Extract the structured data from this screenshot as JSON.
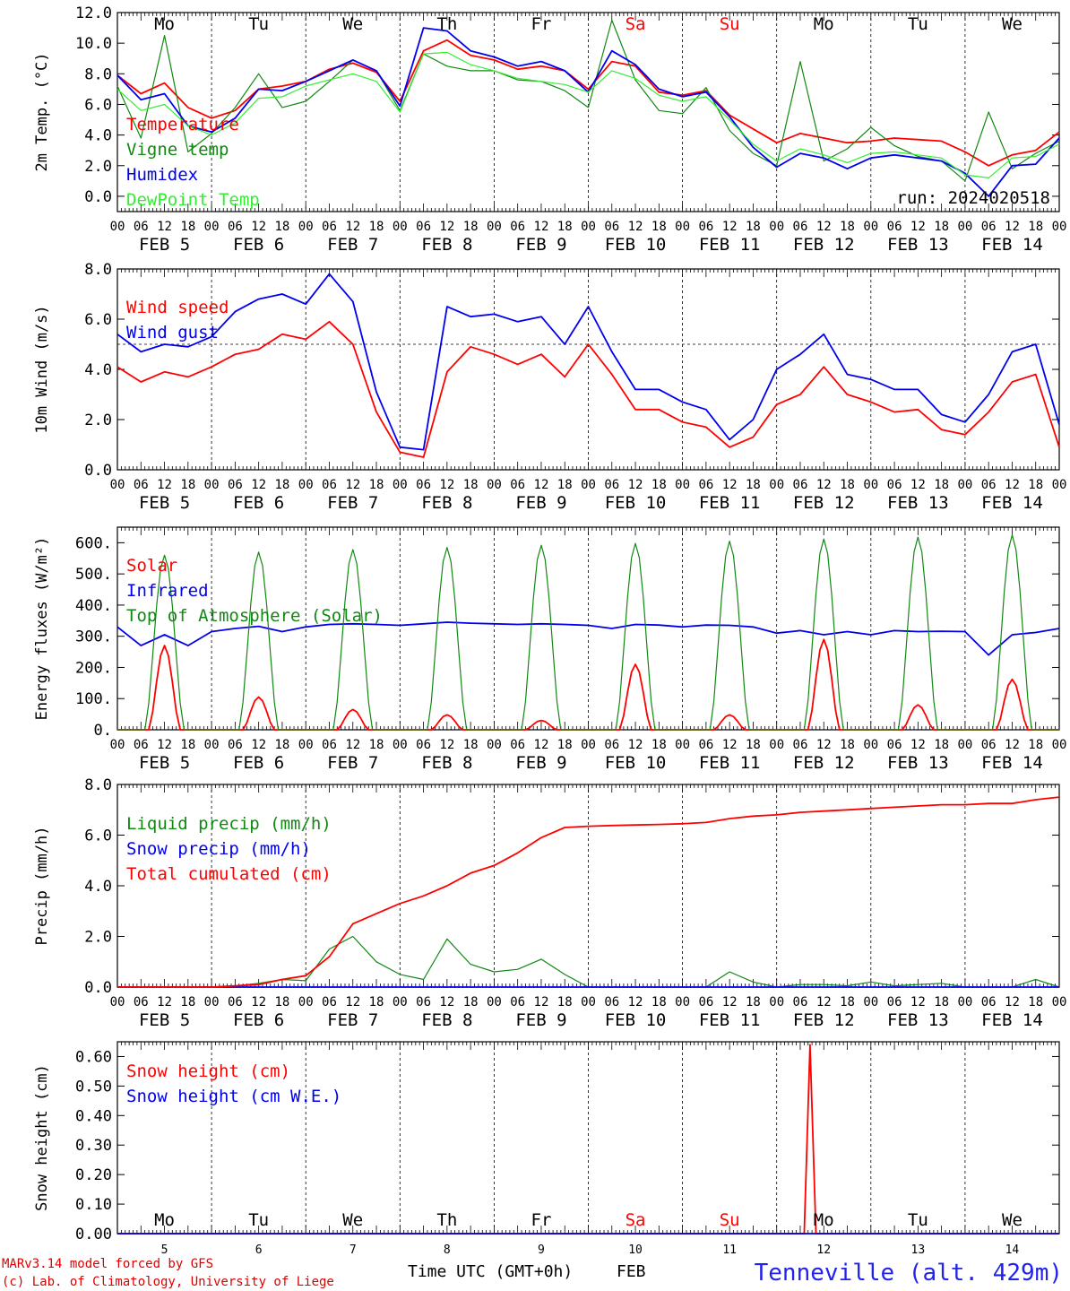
{
  "station_title": "Tenneville (alt. 429m)",
  "credit_line1": "MARv3.14 model forced by GFS",
  "credit_line2": "(c) Lab. of Climatology, University of Liege",
  "run_label": "run: 2024020518",
  "xaxis": {
    "hour_ticks": [
      "00",
      "06",
      "12",
      "18"
    ],
    "dates": [
      "FEB  5",
      "FEB  6",
      "FEB  7",
      "FEB  8",
      "FEB  9",
      "FEB 10",
      "FEB 11",
      "FEB 12",
      "FEB 13",
      "FEB 14"
    ],
    "weekdays": [
      "Mo",
      "Tu",
      "We",
      "Th",
      "Fr",
      "Sa",
      "Su",
      "Mo",
      "Tu",
      "We"
    ],
    "weekend_days": [
      5,
      6
    ],
    "day_numbers": [
      "5",
      "6",
      "7",
      "8",
      "9",
      "10",
      "11",
      "12",
      "13",
      "14"
    ],
    "bottom_label": "Time UTC (GMT+0h)",
    "month_label": "FEB"
  },
  "colors": {
    "red": "#ff0000",
    "green": "#118811",
    "blue": "#0000ee",
    "light_green": "#33ee33",
    "dark_red": "#dd0000",
    "title_blue": "#2222ee"
  },
  "chart_data": [
    {
      "type": "line",
      "ylabel": "2m Temp. (°C)",
      "ylim": [
        -1,
        12
      ],
      "yticks": [
        "0.0",
        "2.0",
        "4.0",
        "6.0",
        "8.0",
        "10.0",
        "12.0"
      ],
      "x_unit": "hours since Feb 5 00 UTC",
      "series": [
        {
          "name": "Temperature",
          "color": "red",
          "x": [
            0,
            6,
            12,
            18,
            24,
            30,
            36,
            42,
            48,
            54,
            60,
            66,
            72,
            78,
            84,
            90,
            96,
            102,
            108,
            114,
            120,
            126,
            132,
            138,
            144,
            150,
            156,
            162,
            168,
            174,
            180,
            186,
            192,
            198,
            204,
            210,
            216,
            222,
            228,
            234,
            240
          ],
          "y": [
            7.9,
            6.7,
            7.4,
            5.8,
            5.1,
            5.6,
            7.0,
            7.2,
            7.5,
            8.3,
            8.7,
            8.1,
            6.2,
            9.5,
            10.2,
            9.2,
            8.9,
            8.3,
            8.5,
            8.2,
            7.0,
            8.8,
            8.5,
            6.8,
            6.6,
            6.9,
            5.3,
            4.4,
            3.5,
            4.1,
            3.8,
            3.5,
            3.6,
            3.8,
            3.7,
            3.6,
            2.9,
            2.0,
            2.7,
            3.0,
            4.2
          ]
        },
        {
          "name": "Vigne temp",
          "color": "green",
          "x": [
            0,
            6,
            12,
            18,
            24,
            30,
            36,
            42,
            48,
            54,
            60,
            66,
            72,
            78,
            84,
            90,
            96,
            102,
            108,
            114,
            120,
            126,
            132,
            138,
            144,
            150,
            156,
            162,
            168,
            174,
            180,
            186,
            192,
            198,
            204,
            210,
            216,
            222,
            228,
            234,
            240
          ],
          "y": [
            7.2,
            3.8,
            10.5,
            2.9,
            4.1,
            5.8,
            8.0,
            5.8,
            6.2,
            7.5,
            8.9,
            8.2,
            5.6,
            9.3,
            8.5,
            8.2,
            8.2,
            7.6,
            7.5,
            6.9,
            5.8,
            11.5,
            7.6,
            5.6,
            5.4,
            7.1,
            4.3,
            2.8,
            2.0,
            8.8,
            2.3,
            3.1,
            4.5,
            3.3,
            2.6,
            2.3,
            1.0,
            5.5,
            1.8,
            2.8,
            3.6
          ]
        },
        {
          "name": "Humidex",
          "color": "blue",
          "x": [
            0,
            6,
            12,
            18,
            24,
            30,
            36,
            42,
            48,
            54,
            60,
            66,
            72,
            78,
            84,
            90,
            96,
            102,
            108,
            114,
            120,
            126,
            132,
            138,
            144,
            150,
            156,
            162,
            168,
            174,
            180,
            186,
            192,
            198,
            204,
            210,
            216,
            222,
            228,
            234,
            240
          ],
          "y": [
            7.9,
            6.3,
            6.7,
            4.6,
            4.2,
            5.1,
            7.0,
            6.9,
            7.5,
            8.2,
            8.9,
            8.2,
            5.9,
            11.0,
            10.8,
            9.5,
            9.1,
            8.5,
            8.8,
            8.2,
            6.8,
            9.5,
            8.6,
            7.0,
            6.5,
            6.8,
            5.2,
            3.2,
            1.9,
            2.8,
            2.5,
            1.8,
            2.5,
            2.7,
            2.5,
            2.3,
            1.5,
            0.0,
            2.0,
            2.1,
            3.8
          ]
        },
        {
          "name": "DewPoint Temp",
          "color": "light_green",
          "x": [
            0,
            6,
            12,
            18,
            24,
            30,
            36,
            42,
            48,
            54,
            60,
            66,
            72,
            78,
            84,
            90,
            96,
            102,
            108,
            114,
            120,
            126,
            132,
            138,
            144,
            150,
            156,
            162,
            168,
            174,
            180,
            186,
            192,
            198,
            204,
            210,
            216,
            222,
            228,
            234,
            240
          ],
          "y": [
            7.0,
            5.6,
            6.0,
            4.6,
            4.0,
            4.8,
            6.4,
            6.5,
            7.2,
            7.6,
            8.0,
            7.5,
            5.5,
            9.3,
            9.4,
            8.6,
            8.2,
            7.7,
            7.5,
            7.3,
            6.8,
            8.2,
            7.7,
            6.6,
            6.2,
            6.5,
            5.0,
            3.4,
            2.3,
            3.1,
            2.7,
            2.2,
            2.8,
            2.9,
            2.7,
            2.5,
            1.4,
            1.2,
            2.5,
            2.6,
            3.4
          ]
        }
      ]
    },
    {
      "type": "line",
      "ylabel": "10m Wind (m/s)",
      "ylim": [
        0,
        8
      ],
      "yticks": [
        "0.0",
        "2.0",
        "4.0",
        "6.0",
        "8.0"
      ],
      "reference_line": 5,
      "x_unit": "hours since Feb 5 00 UTC",
      "series": [
        {
          "name": "Wind speed",
          "color": "red",
          "x": [
            0,
            6,
            12,
            18,
            24,
            30,
            36,
            42,
            48,
            54,
            60,
            66,
            72,
            78,
            84,
            90,
            96,
            102,
            108,
            114,
            120,
            126,
            132,
            138,
            144,
            150,
            156,
            162,
            168,
            174,
            180,
            186,
            192,
            198,
            204,
            210,
            216,
            222,
            228,
            234,
            240
          ],
          "y": [
            4.1,
            3.5,
            3.9,
            3.7,
            4.1,
            4.6,
            4.8,
            5.4,
            5.2,
            5.9,
            5.0,
            2.3,
            0.7,
            0.5,
            3.9,
            4.9,
            4.6,
            4.2,
            4.6,
            3.7,
            5.0,
            3.8,
            2.4,
            2.4,
            1.9,
            1.7,
            0.9,
            1.3,
            2.6,
            3.0,
            4.1,
            3.0,
            2.7,
            2.3,
            2.4,
            1.6,
            1.4,
            2.3,
            3.5,
            3.8,
            0.9
          ]
        },
        {
          "name": "Wind gust",
          "color": "blue",
          "x": [
            0,
            6,
            12,
            18,
            24,
            30,
            36,
            42,
            48,
            54,
            60,
            66,
            72,
            78,
            84,
            90,
            96,
            102,
            108,
            114,
            120,
            126,
            132,
            138,
            144,
            150,
            156,
            162,
            168,
            174,
            180,
            186,
            192,
            198,
            204,
            210,
            216,
            222,
            228,
            234,
            240
          ],
          "y": [
            5.4,
            4.7,
            5.0,
            4.9,
            5.3,
            6.3,
            6.8,
            7.0,
            6.6,
            7.8,
            6.7,
            3.1,
            0.9,
            0.8,
            6.5,
            6.1,
            6.2,
            5.9,
            6.1,
            5.0,
            6.5,
            4.7,
            3.2,
            3.2,
            2.7,
            2.4,
            1.2,
            2.0,
            4.0,
            4.6,
            5.4,
            3.8,
            3.6,
            3.2,
            3.2,
            2.2,
            1.9,
            3.0,
            4.7,
            5.0,
            1.8
          ]
        }
      ]
    },
    {
      "type": "line",
      "ylabel": "Energy fluxes (W/m²)",
      "ylim": [
        0,
        650
      ],
      "yticks": [
        "0.",
        "100.",
        "200.",
        "300.",
        "400.",
        "500.",
        "600."
      ],
      "x_unit": "hours since Feb 5 00 UTC",
      "series": [
        {
          "name": "Solar",
          "color": "red",
          "peaks": [
            270,
            105,
            65,
            48,
            30,
            210,
            48,
            290,
            80,
            162
          ]
        },
        {
          "name": "Infrared",
          "color": "blue",
          "x": [
            0,
            6,
            12,
            18,
            24,
            30,
            36,
            42,
            48,
            54,
            60,
            66,
            72,
            78,
            84,
            90,
            96,
            102,
            108,
            114,
            120,
            126,
            132,
            138,
            144,
            150,
            156,
            162,
            168,
            174,
            180,
            186,
            192,
            198,
            204,
            210,
            216,
            222,
            228,
            234,
            240
          ],
          "y": [
            330,
            270,
            305,
            270,
            315,
            325,
            332,
            315,
            330,
            338,
            340,
            338,
            335,
            340,
            345,
            342,
            340,
            338,
            340,
            338,
            335,
            325,
            338,
            336,
            330,
            336,
            335,
            330,
            310,
            318,
            305,
            315,
            305,
            318,
            315,
            316,
            315,
            240,
            305,
            312,
            325
          ]
        },
        {
          "name": "Top of Atmosphere (Solar)",
          "color": "green",
          "peaks": [
            560,
            570,
            578,
            585,
            592,
            598,
            605,
            612,
            618,
            625
          ]
        }
      ]
    },
    {
      "type": "line",
      "ylabel": "Precip (mm/h)",
      "ylim": [
        0,
        8
      ],
      "yticks": [
        "0.0",
        "2.0",
        "4.0",
        "6.0",
        "8.0"
      ],
      "x_unit": "hours since Feb 5 00 UTC",
      "series": [
        {
          "name": "Liquid precip (mm/h)",
          "color": "green",
          "x": [
            0,
            6,
            12,
            18,
            24,
            30,
            36,
            42,
            48,
            54,
            60,
            66,
            72,
            78,
            84,
            90,
            96,
            102,
            108,
            114,
            120,
            126,
            132,
            138,
            144,
            150,
            156,
            162,
            168,
            174,
            180,
            186,
            192,
            198,
            204,
            210,
            216,
            222,
            228,
            234,
            240
          ],
          "y": [
            0.0,
            0.0,
            0.0,
            0.0,
            0.0,
            0.05,
            0.15,
            0.3,
            0.25,
            1.5,
            2.0,
            1.0,
            0.5,
            0.3,
            1.9,
            0.9,
            0.6,
            0.7,
            1.1,
            0.5,
            0.0,
            0.0,
            0.0,
            0.0,
            0.0,
            0.0,
            0.6,
            0.2,
            0.0,
            0.1,
            0.1,
            0.05,
            0.2,
            0.05,
            0.1,
            0.15,
            0.0,
            0.0,
            0.0,
            0.3,
            0.0
          ]
        },
        {
          "name": "Snow precip (mm/h)",
          "color": "blue",
          "x": [
            0,
            240
          ],
          "y": [
            0.0,
            0.0
          ]
        },
        {
          "name": "Total cumulated (cm)",
          "color": "red",
          "x": [
            0,
            6,
            12,
            18,
            24,
            30,
            36,
            42,
            48,
            54,
            60,
            66,
            72,
            78,
            84,
            90,
            96,
            102,
            108,
            114,
            120,
            126,
            132,
            138,
            144,
            150,
            156,
            162,
            168,
            174,
            180,
            186,
            192,
            198,
            204,
            210,
            216,
            222,
            228,
            234,
            240
          ],
          "y": [
            0.0,
            0.0,
            0.0,
            0.0,
            0.0,
            0.05,
            0.1,
            0.3,
            0.45,
            1.2,
            2.5,
            2.9,
            3.3,
            3.6,
            4.0,
            4.5,
            4.8,
            5.3,
            5.9,
            6.3,
            6.35,
            6.38,
            6.4,
            6.42,
            6.45,
            6.5,
            6.65,
            6.75,
            6.8,
            6.9,
            6.95,
            7.0,
            7.05,
            7.1,
            7.15,
            7.2,
            7.2,
            7.25,
            7.25,
            7.4,
            7.5
          ]
        }
      ]
    },
    {
      "type": "line",
      "ylabel": "Snow height (cm)",
      "ylim": [
        0,
        0.65
      ],
      "yticks": [
        "0.00",
        "0.10",
        "0.20",
        "0.30",
        "0.40",
        "0.50",
        "0.60"
      ],
      "x_unit": "hours since Feb 5 00 UTC",
      "series": [
        {
          "name": "Snow height (cm)",
          "color": "red",
          "x": [
            0,
            175,
            176.5,
            178,
            240
          ],
          "y": [
            0.0,
            0.0,
            0.64,
            0.0,
            0.0
          ]
        },
        {
          "name": "Snow height (cm W.E.)",
          "color": "blue",
          "x": [
            0,
            240
          ],
          "y": [
            0.0,
            0.0
          ]
        }
      ]
    }
  ]
}
